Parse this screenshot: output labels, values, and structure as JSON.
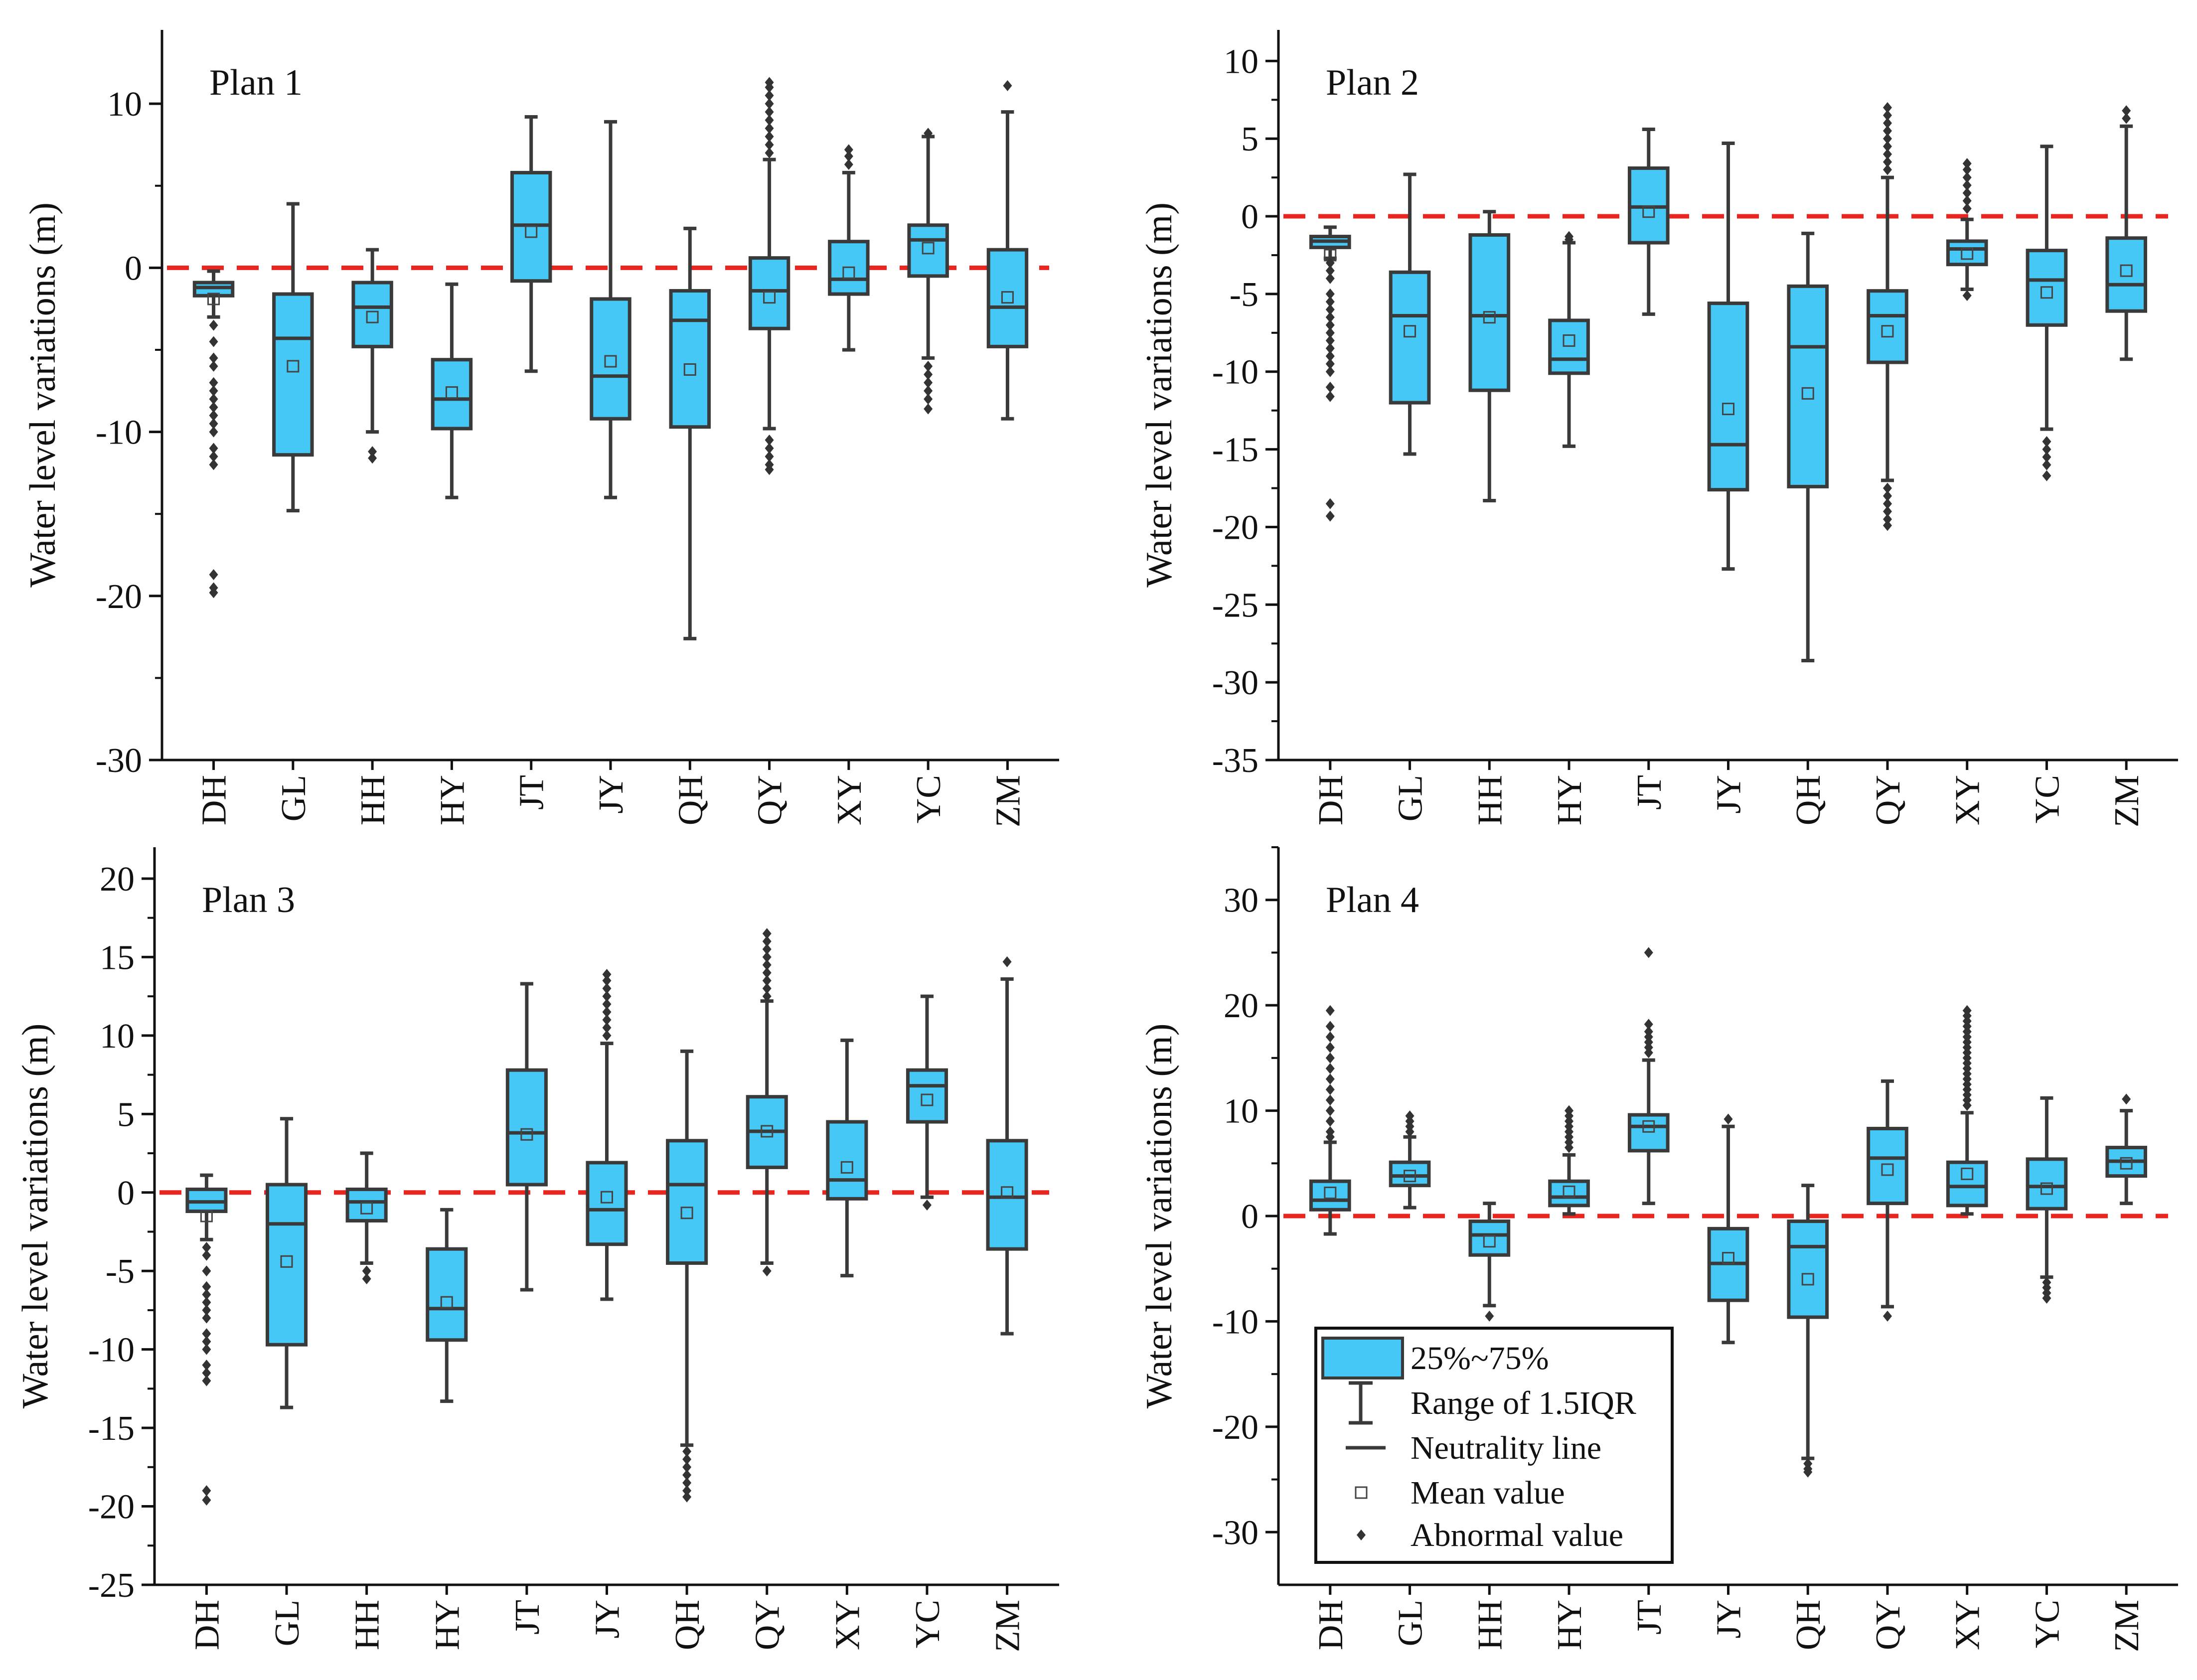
{
  "chart_data": [
    {
      "type": "box",
      "title": "Plan 1",
      "ylabel": "Water level  variations (m)",
      "ylim": [
        -30,
        14.5
      ],
      "yticks": [
        -30,
        -20,
        -10,
        0,
        10
      ],
      "categories": [
        "DH",
        "GL",
        "HH",
        "HY",
        "JT",
        "JY",
        "QH",
        "QY",
        "XY",
        "YC",
        "ZM"
      ],
      "neutrality_line": 0,
      "boxes": [
        {
          "whisker_low": -3.0,
          "q1": -1.7,
          "median": -1.2,
          "q3": -0.9,
          "whisker_high": -0.2,
          "mean": -1.9,
          "outliers": [
            -3.5,
            -4.5,
            -5.5,
            -6,
            -7,
            -7.5,
            -8,
            -8.5,
            -9,
            -9.5,
            -10,
            -11,
            -11.5,
            -12,
            -18.7,
            -19.5,
            -19.8
          ]
        },
        {
          "whisker_low": -14.8,
          "q1": -11.4,
          "median": -4.3,
          "q3": -1.6,
          "whisker_high": 3.9,
          "mean": -6.0,
          "outliers": []
        },
        {
          "whisker_low": -10.0,
          "q1": -4.8,
          "median": -2.4,
          "q3": -0.9,
          "whisker_high": 1.1,
          "mean": -3.0,
          "outliers": [
            -11.2,
            -11.6
          ]
        },
        {
          "whisker_low": -14.0,
          "q1": -9.8,
          "median": -8.0,
          "q3": -5.6,
          "whisker_high": -1.0,
          "mean": -7.6,
          "outliers": []
        },
        {
          "whisker_low": -6.3,
          "q1": -0.8,
          "median": 2.6,
          "q3": 5.8,
          "whisker_high": 9.2,
          "mean": 2.2,
          "outliers": []
        },
        {
          "whisker_low": -14.0,
          "q1": -9.2,
          "median": -6.6,
          "q3": -1.9,
          "whisker_high": 8.9,
          "mean": -5.7,
          "outliers": []
        },
        {
          "whisker_low": -22.6,
          "q1": -9.7,
          "median": -3.2,
          "q3": -1.4,
          "whisker_high": 2.4,
          "mean": -6.2,
          "outliers": []
        },
        {
          "whisker_low": -9.8,
          "q1": -3.7,
          "median": -1.4,
          "q3": 0.6,
          "whisker_high": 6.6,
          "mean": -1.8,
          "outliers": [
            -10.5,
            -11,
            -11.5,
            -12,
            -12.3,
            7,
            7.5,
            8,
            8.5,
            9,
            9.5,
            10,
            10.5,
            11,
            11.3
          ]
        },
        {
          "whisker_low": -5.0,
          "q1": -1.6,
          "median": -0.7,
          "q3": 1.6,
          "whisker_high": 5.8,
          "mean": -0.3,
          "outliers": [
            6.3,
            6.8,
            7.2
          ]
        },
        {
          "whisker_low": -5.5,
          "q1": -0.5,
          "median": 1.7,
          "q3": 2.6,
          "whisker_high": 8.0,
          "mean": 1.2,
          "outliers": [
            -6,
            -6.5,
            -7,
            -7.5,
            -8,
            -8.6,
            8.2
          ]
        },
        {
          "whisker_low": -9.2,
          "q1": -4.8,
          "median": -2.4,
          "q3": 1.1,
          "whisker_high": 9.5,
          "mean": -1.8,
          "outliers": [
            11.1
          ]
        }
      ]
    },
    {
      "type": "box",
      "title": "Plan 2",
      "ylabel": "Water level  variations (m)",
      "ylim": [
        -35,
        12
      ],
      "yticks": [
        -35,
        -30,
        -25,
        -20,
        -15,
        -10,
        -5,
        0,
        5,
        10
      ],
      "categories": [
        "DH",
        "GL",
        "HH",
        "HY",
        "JT",
        "JY",
        "QH",
        "QY",
        "XY",
        "YC",
        "ZM"
      ],
      "neutrality_line": 0,
      "boxes": [
        {
          "whisker_low": -2.7,
          "q1": -2.0,
          "median": -1.6,
          "q3": -1.3,
          "whisker_high": -0.7,
          "mean": -2.5,
          "outliers": [
            -3,
            -3.5,
            -4,
            -5,
            -5.5,
            -6,
            -6.5,
            -7,
            -7.5,
            -8,
            -8.5,
            -9,
            -9.5,
            -10,
            -11,
            -11.6,
            -18.5,
            -19.3
          ]
        },
        {
          "whisker_low": -15.3,
          "q1": -12.0,
          "median": -6.4,
          "q3": -3.6,
          "whisker_high": 2.7,
          "mean": -7.4,
          "outliers": []
        },
        {
          "whisker_low": -18.3,
          "q1": -11.2,
          "median": -6.4,
          "q3": -1.2,
          "whisker_high": 0.3,
          "mean": -6.5,
          "outliers": []
        },
        {
          "whisker_low": -14.8,
          "q1": -10.1,
          "median": -9.2,
          "q3": -6.7,
          "whisker_high": -1.7,
          "mean": -8.0,
          "outliers": [
            -1.3,
            -1.5
          ]
        },
        {
          "whisker_low": -6.3,
          "q1": -1.7,
          "median": 0.6,
          "q3": 3.1,
          "whisker_high": 5.6,
          "mean": 0.3,
          "outliers": []
        },
        {
          "whisker_low": -22.7,
          "q1": -17.6,
          "median": -14.7,
          "q3": -5.6,
          "whisker_high": 4.7,
          "mean": -12.4,
          "outliers": []
        },
        {
          "whisker_low": -28.6,
          "q1": -17.4,
          "median": -8.4,
          "q3": -4.5,
          "whisker_high": -1.1,
          "mean": -11.4,
          "outliers": []
        },
        {
          "whisker_low": -17.0,
          "q1": -9.4,
          "median": -6.4,
          "q3": -4.8,
          "whisker_high": 2.5,
          "mean": -7.4,
          "outliers": [
            -17.5,
            -18,
            -18.5,
            -19,
            -19.5,
            -19.9,
            3,
            3.5,
            4,
            4.5,
            5,
            5.5,
            6,
            6.5,
            7
          ]
        },
        {
          "whisker_low": -4.7,
          "q1": -3.1,
          "median": -2.1,
          "q3": -1.6,
          "whisker_high": -0.2,
          "mean": -2.4,
          "outliers": [
            -5.1,
            0.5,
            1,
            1.5,
            2,
            2.5,
            3,
            3.4
          ]
        },
        {
          "whisker_low": -13.7,
          "q1": -7.0,
          "median": -4.1,
          "q3": -2.2,
          "whisker_high": 4.5,
          "mean": -4.9,
          "outliers": [
            -14.5,
            -15,
            -15.5,
            -16,
            -16.7
          ]
        },
        {
          "whisker_low": -9.2,
          "q1": -6.1,
          "median": -4.4,
          "q3": -1.4,
          "whisker_high": 5.8,
          "mean": -3.5,
          "outliers": [
            6.3,
            6.8
          ]
        }
      ]
    },
    {
      "type": "box",
      "title": "Plan 3",
      "ylabel": "Water level  variations (m)",
      "ylim": [
        -25,
        22
      ],
      "yticks": [
        -25,
        -20,
        -15,
        -10,
        -5,
        0,
        5,
        10,
        15,
        20
      ],
      "categories": [
        "DH",
        "GL",
        "HH",
        "HY",
        "JT",
        "JY",
        "QH",
        "QY",
        "XY",
        "YC",
        "ZM"
      ],
      "neutrality_line": 0,
      "boxes": [
        {
          "whisker_low": -3.0,
          "q1": -1.2,
          "median": -0.6,
          "q3": 0.2,
          "whisker_high": 1.1,
          "mean": -1.5,
          "outliers": [
            -3.5,
            -4,
            -5,
            -6,
            -6.5,
            -7,
            -7.5,
            -8,
            -9,
            -9.5,
            -10,
            -11,
            -11.5,
            -12,
            -19,
            -19.6
          ]
        },
        {
          "whisker_low": -13.7,
          "q1": -9.7,
          "median": -2.0,
          "q3": 0.5,
          "whisker_high": 4.7,
          "mean": -4.4,
          "outliers": []
        },
        {
          "whisker_low": -4.5,
          "q1": -1.8,
          "median": -0.6,
          "q3": 0.2,
          "whisker_high": 2.5,
          "mean": -1.0,
          "outliers": [
            -5.0,
            -5.5
          ]
        },
        {
          "whisker_low": -13.3,
          "q1": -9.4,
          "median": -7.4,
          "q3": -3.6,
          "whisker_high": -1.1,
          "mean": -7.0,
          "outliers": []
        },
        {
          "whisker_low": -6.2,
          "q1": 0.5,
          "median": 3.8,
          "q3": 7.8,
          "whisker_high": 13.3,
          "mean": 3.7,
          "outliers": []
        },
        {
          "whisker_low": -6.8,
          "q1": -3.3,
          "median": -1.1,
          "q3": 1.9,
          "whisker_high": 9.5,
          "mean": -0.3,
          "outliers": [
            10,
            10.5,
            11,
            11.5,
            12,
            12.5,
            13,
            13.5,
            13.9
          ]
        },
        {
          "whisker_low": -16.1,
          "q1": -4.5,
          "median": 0.5,
          "q3": 3.3,
          "whisker_high": 9.0,
          "mean": -1.3,
          "outliers": [
            -16.5,
            -17,
            -17.5,
            -18,
            -18.5,
            -19,
            -19.4
          ]
        },
        {
          "whisker_low": -4.5,
          "q1": 1.6,
          "median": 3.9,
          "q3": 6.1,
          "whisker_high": 12.2,
          "mean": 3.9,
          "outliers": [
            -5,
            12.5,
            13,
            13.5,
            14,
            14.5,
            15,
            15.5,
            16,
            16.5
          ]
        },
        {
          "whisker_low": -5.3,
          "q1": -0.4,
          "median": 0.8,
          "q3": 4.5,
          "whisker_high": 9.7,
          "mean": 1.6,
          "outliers": []
        },
        {
          "whisker_low": -0.3,
          "q1": 4.5,
          "median": 6.8,
          "q3": 7.8,
          "whisker_high": 12.5,
          "mean": 5.9,
          "outliers": [
            -0.8
          ]
        },
        {
          "whisker_low": -9.0,
          "q1": -3.6,
          "median": -0.3,
          "q3": 3.3,
          "whisker_high": 13.6,
          "mean": 0.0,
          "outliers": [
            14.7
          ]
        }
      ]
    },
    {
      "type": "box",
      "title": "Plan 4",
      "ylabel": "Water level  variations (m)",
      "ylim": [
        -35,
        35
      ],
      "yticks": [
        -30,
        -20,
        -10,
        0,
        10,
        20,
        30
      ],
      "categories": [
        "DH",
        "GL",
        "HH",
        "HY",
        "JT",
        "JY",
        "QH",
        "QY",
        "XY",
        "YC",
        "ZM"
      ],
      "neutrality_line": 0,
      "boxes": [
        {
          "whisker_low": -1.7,
          "q1": 0.6,
          "median": 1.5,
          "q3": 3.3,
          "whisker_high": 7.0,
          "mean": 2.2,
          "outliers": [
            7.5,
            8,
            9,
            10,
            11,
            12,
            13,
            14,
            15,
            16,
            17,
            18,
            19.5
          ]
        },
        {
          "whisker_low": 0.8,
          "q1": 2.9,
          "median": 3.8,
          "q3": 5.1,
          "whisker_high": 7.5,
          "mean": 3.8,
          "outliers": [
            8,
            8.5,
            9,
            9.5
          ]
        },
        {
          "whisker_low": -8.5,
          "q1": -3.7,
          "median": -1.8,
          "q3": -0.5,
          "whisker_high": 1.2,
          "mean": -2.4,
          "outliers": [
            -9.5
          ]
        },
        {
          "whisker_low": 0.2,
          "q1": 1.0,
          "median": 1.8,
          "q3": 3.3,
          "whisker_high": 5.8,
          "mean": 2.3,
          "outliers": [
            6.5,
            7,
            7.5,
            8,
            8.5,
            9,
            9.5,
            10
          ]
        },
        {
          "whisker_low": 1.2,
          "q1": 6.2,
          "median": 8.5,
          "q3": 9.6,
          "whisker_high": 14.8,
          "mean": 8.5,
          "outliers": [
            15.5,
            16,
            16.5,
            17,
            17.5,
            18.2,
            25
          ]
        },
        {
          "whisker_low": -12.0,
          "q1": -8.0,
          "median": -4.5,
          "q3": -1.2,
          "whisker_high": 8.5,
          "mean": -4.0,
          "outliers": [
            9.2
          ]
        },
        {
          "whisker_low": -23.0,
          "q1": -9.6,
          "median": -2.9,
          "q3": -0.5,
          "whisker_high": 2.9,
          "mean": -6.0,
          "outliers": [
            -23.5,
            -24,
            -24.3
          ]
        },
        {
          "whisker_low": -8.6,
          "q1": 1.2,
          "median": 5.5,
          "q3": 8.3,
          "whisker_high": 12.8,
          "mean": 4.4,
          "outliers": [
            -9.5
          ]
        },
        {
          "whisker_low": 0.2,
          "q1": 1.0,
          "median": 2.8,
          "q3": 5.1,
          "whisker_high": 9.8,
          "mean": 4.0,
          "outliers": [
            10.5,
            11,
            11.5,
            12,
            12.5,
            13,
            13.5,
            14,
            14.5,
            15,
            15.5,
            16,
            16.5,
            17,
            17.5,
            18,
            18.5,
            19,
            19.5
          ]
        },
        {
          "whisker_low": -5.8,
          "q1": 0.7,
          "median": 2.8,
          "q3": 5.4,
          "whisker_high": 11.2,
          "mean": 2.6,
          "outliers": [
            -6.3,
            -6.8,
            -7.3,
            -7.8
          ]
        },
        {
          "whisker_low": 1.2,
          "q1": 3.8,
          "median": 5.2,
          "q3": 6.5,
          "whisker_high": 10.0,
          "mean": 5.0,
          "outliers": [
            11.1
          ]
        }
      ]
    }
  ],
  "legend": {
    "items": [
      "25%~75%",
      "Range of 1.5IQR",
      "Neutrality line",
      "Mean value",
      "Abnormal value"
    ]
  },
  "colors": {
    "box_fill": "#45C8F5",
    "box_stroke": "#3a3a3a",
    "neutral_line": "#E8251E",
    "axis": "#111111"
  }
}
